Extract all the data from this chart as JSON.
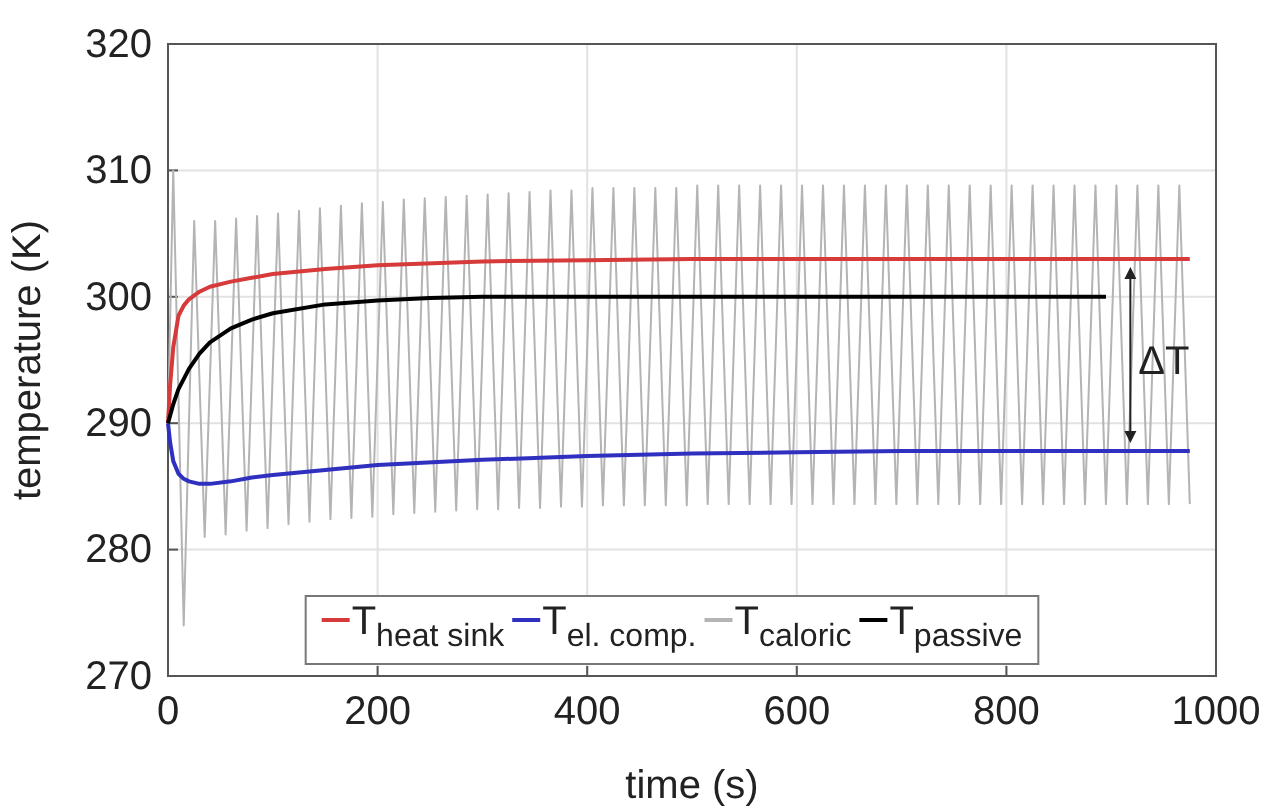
{
  "chart_data": {
    "type": "line",
    "xlabel": "time (s)",
    "ylabel": "temperature (K)",
    "xlim": [
      0,
      1000
    ],
    "xticks": [
      0,
      200,
      400,
      600,
      800,
      1000
    ],
    "ylim": [
      270,
      320
    ],
    "yticks": [
      270,
      280,
      290,
      300,
      310,
      320
    ],
    "grid": true,
    "legend": "bottom",
    "line_style": "solid",
    "marker": "none",
    "annotations": [
      {
        "text": "ΔT",
        "x": 945,
        "y": 295
      }
    ],
    "series": [
      {
        "name": "T$_{heat sink}$",
        "color": "#d63a3a",
        "x": [
          0,
          2,
          5,
          10,
          15,
          20,
          30,
          40,
          60,
          80,
          100,
          150,
          200,
          300,
          400,
          500,
          600,
          700,
          800,
          900,
          975
        ],
        "values": [
          290,
          293,
          296,
          298.5,
          299.3,
          299.8,
          300.4,
          300.8,
          301.2,
          301.5,
          301.8,
          302.2,
          302.5,
          302.8,
          302.9,
          303,
          303,
          303,
          303,
          303,
          303
        ]
      },
      {
        "name": "T$_{el. comp.}$",
        "color": "#3030c0",
        "x": [
          0,
          2,
          5,
          10,
          15,
          20,
          30,
          40,
          60,
          80,
          100,
          150,
          200,
          300,
          400,
          500,
          600,
          700,
          800,
          900,
          975
        ],
        "values": [
          290,
          288.5,
          287,
          286,
          285.6,
          285.4,
          285.2,
          285.2,
          285.4,
          285.7,
          285.9,
          286.3,
          286.7,
          287.1,
          287.4,
          287.6,
          287.7,
          287.8,
          287.8,
          287.8,
          287.8
        ]
      },
      {
        "name": "T$_{caloric}$",
        "color": "#b4b4b4",
        "x": [
          0,
          5,
          15,
          25,
          35,
          45,
          55,
          65,
          75,
          85,
          95,
          105,
          115,
          125,
          135,
          145,
          155,
          165,
          175,
          185,
          195,
          205,
          215,
          225,
          235,
          245,
          255,
          265,
          275,
          285,
          295,
          305,
          315,
          325,
          335,
          345,
          355,
          365,
          375,
          385,
          395,
          405,
          415,
          425,
          435,
          445,
          455,
          465,
          475,
          485,
          495,
          505,
          515,
          525,
          535,
          545,
          555,
          565,
          575,
          585,
          595,
          605,
          615,
          625,
          635,
          645,
          655,
          665,
          675,
          685,
          695,
          705,
          715,
          725,
          735,
          745,
          755,
          765,
          775,
          785,
          795,
          805,
          815,
          825,
          835,
          845,
          855,
          865,
          875,
          885,
          895,
          905,
          915,
          925,
          935,
          945,
          955,
          965,
          975
        ],
        "values": [
          290,
          310,
          274,
          306,
          281,
          306,
          281.2,
          306.2,
          281.5,
          306.4,
          281.7,
          306.6,
          282,
          306.8,
          282.2,
          307,
          282.4,
          307.2,
          282.5,
          307.4,
          282.6,
          307.5,
          282.8,
          307.7,
          282.9,
          307.8,
          283,
          307.9,
          283.1,
          308,
          283.2,
          308.1,
          283.2,
          308.2,
          283.3,
          308.3,
          283.3,
          308.4,
          283.4,
          308.4,
          283.4,
          308.6,
          283.5,
          308.6,
          283.5,
          308.6,
          283.5,
          308.6,
          283.5,
          308.6,
          283.5,
          308.8,
          283.6,
          308.8,
          283.6,
          308.8,
          283.6,
          308.8,
          283.6,
          308.8,
          283.6,
          308.8,
          283.6,
          308.8,
          283.6,
          308.8,
          283.6,
          308.8,
          283.6,
          308.8,
          283.6,
          308.8,
          283.6,
          308.8,
          283.6,
          308.8,
          283.6,
          308.8,
          283.6,
          308.8,
          283.6,
          308.8,
          283.6,
          308.8,
          283.6,
          308.8,
          283.6,
          308.8,
          283.6,
          308.8,
          283.6,
          308.8,
          283.6,
          308.8,
          283.6,
          308.8,
          283.6,
          308.8,
          283.6
        ]
      },
      {
        "name": "T$_{passive}$",
        "color": "#000000",
        "x": [
          0,
          5,
          10,
          20,
          30,
          40,
          60,
          80,
          100,
          150,
          200,
          250,
          300,
          400,
          500,
          600,
          700,
          800,
          895
        ],
        "values": [
          290,
          291.5,
          292.7,
          294.3,
          295.5,
          296.4,
          297.5,
          298.2,
          298.7,
          299.4,
          299.7,
          299.9,
          300,
          300,
          300,
          300,
          300,
          300,
          300
        ]
      }
    ]
  }
}
